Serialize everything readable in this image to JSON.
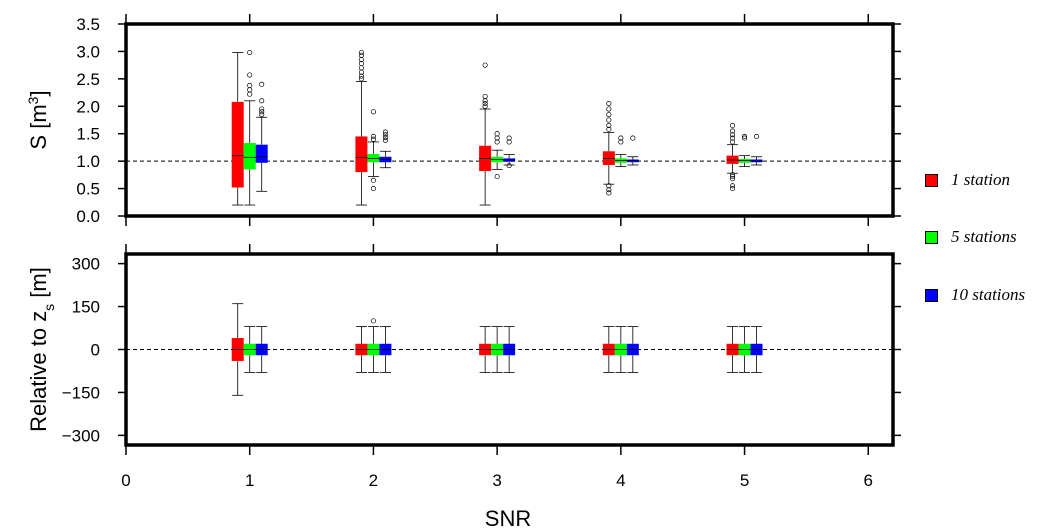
{
  "chart_data": {
    "type": "box",
    "xlabel": "SNR",
    "x_range": [
      0,
      6.2
    ],
    "x_ticks": [
      0,
      1,
      2,
      3,
      4,
      5,
      6
    ],
    "x_tick_labels": [
      "0",
      "1",
      "2",
      "3",
      "4",
      "5",
      "6"
    ],
    "reference_line_style": "dashed",
    "series": [
      {
        "name": "1 station",
        "color": "#ff0000"
      },
      {
        "name": "5 stations",
        "color": "#00ff00"
      },
      {
        "name": "10 stations",
        "color": "#0000ff"
      }
    ],
    "panels": [
      {
        "id": "volume",
        "ylabel": "S [m",
        "ylabel_sup": "3",
        "ylabel_end": "]",
        "ylim": [
          0,
          3.5
        ],
        "y_ticks": [
          0,
          0.5,
          1,
          1.5,
          2,
          2.5,
          3,
          3.5
        ],
        "y_tick_labels": [
          "0.0",
          "0.5",
          "1.0",
          "1.5",
          "2.0",
          "2.5",
          "3.0",
          "3.5"
        ],
        "reference_line": 1.0,
        "boxes": [
          {
            "snr": 1,
            "series": 0,
            "whisker_low": 0.2,
            "q1": 0.52,
            "median": 1.1,
            "q3": 2.08,
            "whisker_high": 2.98,
            "outliers": []
          },
          {
            "snr": 1,
            "series": 1,
            "whisker_low": 0.2,
            "q1": 0.85,
            "median": 1.07,
            "q3": 1.33,
            "whisker_high": 2.1,
            "outliers": [
              2.22,
              2.3,
              2.38,
              2.57,
              2.98
            ]
          },
          {
            "snr": 1,
            "series": 2,
            "whisker_low": 0.45,
            "q1": 0.97,
            "median": 1.08,
            "q3": 1.3,
            "whisker_high": 1.8,
            "outliers": [
              1.85,
              1.9,
              1.95,
              2.1,
              2.4
            ]
          },
          {
            "snr": 2,
            "series": 0,
            "whisker_low": 0.2,
            "q1": 0.8,
            "median": 1.07,
            "q3": 1.45,
            "whisker_high": 2.45,
            "outliers": [
              2.5,
              2.55,
              2.62,
              2.7,
              2.78,
              2.85,
              2.93,
              2.98
            ]
          },
          {
            "snr": 2,
            "series": 1,
            "whisker_low": 0.72,
            "q1": 0.98,
            "median": 1.05,
            "q3": 1.13,
            "whisker_high": 1.35,
            "outliers": [
              0.5,
              0.65,
              1.4,
              1.45,
              1.9
            ]
          },
          {
            "snr": 2,
            "series": 2,
            "whisker_low": 0.88,
            "q1": 0.98,
            "median": 1.03,
            "q3": 1.08,
            "whisker_high": 1.18,
            "outliers": [
              1.38,
              1.43,
              1.48,
              1.53
            ]
          },
          {
            "snr": 3,
            "series": 0,
            "whisker_low": 0.2,
            "q1": 0.82,
            "median": 1.05,
            "q3": 1.28,
            "whisker_high": 1.95,
            "outliers": [
              2.0,
              2.05,
              2.1,
              2.18,
              2.75
            ]
          },
          {
            "snr": 3,
            "series": 1,
            "whisker_low": 0.85,
            "q1": 0.98,
            "median": 1.03,
            "q3": 1.08,
            "whisker_high": 1.2,
            "outliers": [
              0.72,
              1.35,
              1.42,
              1.5
            ]
          },
          {
            "snr": 3,
            "series": 2,
            "whisker_low": 0.93,
            "q1": 0.99,
            "median": 1.02,
            "q3": 1.05,
            "whisker_high": 1.12,
            "outliers": [
              0.92,
              1.35,
              1.42
            ]
          },
          {
            "snr": 4,
            "series": 0,
            "whisker_low": 0.58,
            "q1": 0.93,
            "median": 1.05,
            "q3": 1.18,
            "whisker_high": 1.52,
            "outliers": [
              0.42,
              0.48,
              0.55,
              1.58,
              1.65,
              1.75,
              1.85,
              1.95,
              2.05
            ]
          },
          {
            "snr": 4,
            "series": 1,
            "whisker_low": 0.9,
            "q1": 0.97,
            "median": 1.01,
            "q3": 1.05,
            "whisker_high": 1.12,
            "outliers": [
              1.35,
              1.42
            ]
          },
          {
            "snr": 4,
            "series": 2,
            "whisker_low": 0.93,
            "q1": 0.98,
            "median": 1.01,
            "q3": 1.03,
            "whisker_high": 1.08,
            "outliers": [
              1.42
            ]
          },
          {
            "snr": 5,
            "series": 0,
            "whisker_low": 0.78,
            "q1": 0.95,
            "median": 1.02,
            "q3": 1.1,
            "whisker_high": 1.3,
            "outliers": [
              0.5,
              0.55,
              0.68,
              0.72,
              0.75,
              1.35,
              1.42,
              1.48,
              1.55,
              1.65
            ]
          },
          {
            "snr": 5,
            "series": 1,
            "whisker_low": 0.9,
            "q1": 0.97,
            "median": 1.01,
            "q3": 1.04,
            "whisker_high": 1.1,
            "outliers": [
              1.42,
              1.45
            ]
          },
          {
            "snr": 5,
            "series": 2,
            "whisker_low": 0.93,
            "q1": 0.98,
            "median": 1.0,
            "q3": 1.03,
            "whisker_high": 1.08,
            "outliers": [
              1.45
            ]
          }
        ]
      },
      {
        "id": "depth",
        "ylabel": "Relative to z",
        "ylabel_sub": "s",
        "ylabel_end": " [m]",
        "ylim": [
          -400,
          400
        ],
        "y_ticks": [
          -300,
          -150,
          0,
          150,
          300
        ],
        "y_tick_labels": [
          "−300",
          "−150",
          "0",
          "150",
          "300"
        ],
        "reference_line": 0,
        "boxes": [
          {
            "snr": 1,
            "series": 0,
            "whisker_low": -160,
            "q1": -40,
            "median": 0,
            "q3": 40,
            "whisker_high": 160,
            "outliers": []
          },
          {
            "snr": 1,
            "series": 1,
            "whisker_low": -80,
            "q1": -20,
            "median": 0,
            "q3": 20,
            "whisker_high": 80,
            "outliers": []
          },
          {
            "snr": 1,
            "series": 2,
            "whisker_low": -80,
            "q1": -20,
            "median": 0,
            "q3": 20,
            "whisker_high": 80,
            "outliers": []
          },
          {
            "snr": 2,
            "series": 0,
            "whisker_low": -80,
            "q1": -20,
            "median": 0,
            "q3": 20,
            "whisker_high": 80,
            "outliers": []
          },
          {
            "snr": 2,
            "series": 1,
            "whisker_low": -80,
            "q1": -20,
            "median": 0,
            "q3": 20,
            "whisker_high": 80,
            "outliers": [
              100
            ]
          },
          {
            "snr": 2,
            "series": 2,
            "whisker_low": -80,
            "q1": -20,
            "median": 0,
            "q3": 20,
            "whisker_high": 80,
            "outliers": []
          },
          {
            "snr": 3,
            "series": 0,
            "whisker_low": -80,
            "q1": -20,
            "median": 0,
            "q3": 20,
            "whisker_high": 80,
            "outliers": []
          },
          {
            "snr": 3,
            "series": 1,
            "whisker_low": -80,
            "q1": -20,
            "median": 0,
            "q3": 20,
            "whisker_high": 80,
            "outliers": []
          },
          {
            "snr": 3,
            "series": 2,
            "whisker_low": -80,
            "q1": -20,
            "median": 0,
            "q3": 20,
            "whisker_high": 80,
            "outliers": []
          },
          {
            "snr": 4,
            "series": 0,
            "whisker_low": -80,
            "q1": -20,
            "median": 0,
            "q3": 20,
            "whisker_high": 80,
            "outliers": []
          },
          {
            "snr": 4,
            "series": 1,
            "whisker_low": -80,
            "q1": -20,
            "median": 0,
            "q3": 20,
            "whisker_high": 80,
            "outliers": []
          },
          {
            "snr": 4,
            "series": 2,
            "whisker_low": -80,
            "q1": -20,
            "median": 0,
            "q3": 20,
            "whisker_high": 80,
            "outliers": []
          },
          {
            "snr": 5,
            "series": 0,
            "whisker_low": -80,
            "q1": -20,
            "median": 0,
            "q3": 20,
            "whisker_high": 80,
            "outliers": []
          },
          {
            "snr": 5,
            "series": 1,
            "whisker_low": -80,
            "q1": -20,
            "median": 0,
            "q3": 20,
            "whisker_high": 80,
            "outliers": []
          },
          {
            "snr": 5,
            "series": 2,
            "whisker_low": -80,
            "q1": -20,
            "median": 0,
            "q3": 20,
            "whisker_high": 80,
            "outliers": []
          }
        ]
      }
    ]
  }
}
